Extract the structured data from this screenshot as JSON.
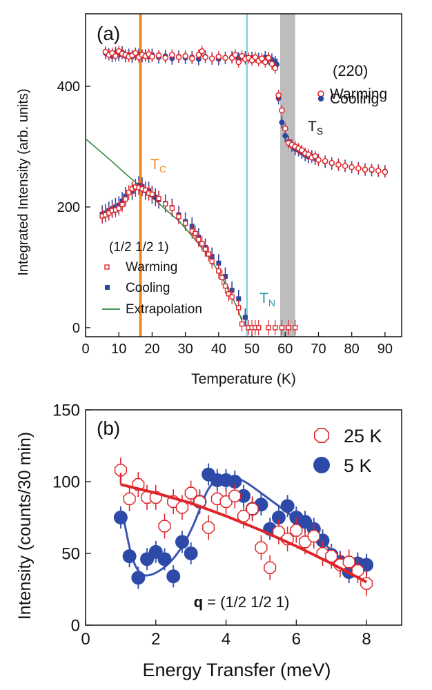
{
  "chart_data": [
    {
      "panel": "(a)",
      "type": "scatter",
      "xlabel": "Temperature (K)",
      "ylabel": "Integrated Intensity (arb. units)",
      "xlim": [
        0,
        95
      ],
      "ylim": [
        -15,
        520
      ],
      "xticks": [
        0,
        10,
        20,
        30,
        40,
        50,
        60,
        70,
        80,
        90
      ],
      "yticks": [
        0,
        200,
        400
      ],
      "legend_top": {
        "title": "(220)",
        "warming": "Warming",
        "cooling": "Cooling",
        "position": "top-right"
      },
      "legend_bottom": {
        "title": "(1/2 1/2 1)",
        "warming": "Warming",
        "cooling": "Cooling",
        "extrapolation": "Extrapolation",
        "position": "bottom-left"
      },
      "annotations": {
        "tc": {
          "main": "T",
          "sub": "C",
          "x": 16.5,
          "color": "#f08a24"
        },
        "tn": {
          "main": "T",
          "sub": "N",
          "x": 48.5,
          "color": "#7fd3e0"
        },
        "ts": {
          "main": "T",
          "sub": "S",
          "band": [
            58.5,
            63
          ],
          "color": "#bdbdbd"
        }
      },
      "colors": {
        "red": "#e0252a",
        "blue": "#2b47a0",
        "green": "#2a8a3e"
      },
      "series": [
        {
          "name": "(220) Warming",
          "x": [
            6,
            7,
            8,
            9,
            10,
            11,
            12,
            13,
            14,
            15,
            16,
            17,
            18,
            19,
            20,
            22,
            24,
            26,
            28,
            30,
            32,
            34,
            35,
            36,
            38,
            40,
            42,
            44,
            45,
            46,
            47,
            48,
            49,
            50,
            51,
            52,
            53,
            54,
            55,
            56,
            57,
            58,
            59,
            60,
            61,
            62,
            63,
            64,
            65,
            66,
            67,
            68,
            69,
            70,
            72,
            74,
            76,
            78,
            80,
            82,
            84,
            86,
            88,
            90
          ],
          "y": [
            457,
            452,
            455,
            450,
            458,
            454,
            452,
            449,
            451,
            455,
            448,
            452,
            450,
            453,
            449,
            451,
            447,
            452,
            448,
            450,
            446,
            452,
            458,
            448,
            446,
            449,
            447,
            447,
            452,
            440,
            450,
            445,
            447,
            443,
            448,
            442,
            446,
            440,
            447,
            437,
            430,
            385,
            360,
            330,
            306,
            303,
            300,
            297,
            294,
            289,
            287,
            282,
            284,
            278,
            276,
            273,
            270,
            268,
            266,
            264,
            262,
            262,
            260,
            258
          ]
        },
        {
          "name": "(220) Cooling",
          "x": [
            6,
            7,
            8,
            9,
            10,
            11,
            12,
            13,
            14,
            15,
            16,
            17,
            18,
            19,
            20,
            22,
            24,
            26,
            28,
            30,
            32,
            34,
            36,
            38,
            40,
            42,
            44,
            46,
            48,
            50,
            52,
            54,
            55,
            56,
            57,
            57.5,
            58,
            59,
            60,
            61,
            62,
            63,
            64,
            65,
            66,
            67,
            68,
            69,
            70,
            72,
            74,
            76,
            78,
            80,
            82,
            84,
            86,
            88,
            90
          ],
          "y": [
            455,
            453,
            450,
            455,
            452,
            456,
            450,
            452,
            449,
            453,
            452,
            450,
            451,
            449,
            452,
            448,
            450,
            446,
            449,
            447,
            448,
            445,
            449,
            446,
            445,
            447,
            448,
            446,
            448,
            447,
            445,
            448,
            446,
            444,
            440,
            436,
            380,
            340,
            318,
            308,
            302,
            296,
            294,
            290,
            286,
            283,
            284,
            280,
            278,
            275,
            272,
            270,
            268,
            266,
            264,
            262,
            261,
            260,
            259
          ]
        },
        {
          "name": "(1/2 1/2 1) Warming",
          "x": [
            5,
            6,
            7,
            8,
            9,
            10,
            11,
            12,
            13,
            14,
            15,
            16,
            17,
            18,
            19,
            20,
            22,
            24,
            26,
            28,
            30,
            32,
            33,
            34,
            35,
            36,
            37,
            38,
            40,
            41,
            42,
            43,
            44,
            46,
            47,
            49,
            50,
            51,
            52,
            55,
            57,
            59,
            61,
            63
          ],
          "y": [
            185,
            187,
            190,
            194,
            195,
            198,
            204,
            213,
            224,
            230,
            233,
            232,
            230,
            228,
            223,
            221,
            214,
            205,
            198,
            184,
            173,
            160,
            156,
            146,
            139,
            130,
            122,
            110,
            94,
            83,
            69,
            56,
            51,
            33,
            6,
            0,
            0,
            0,
            0,
            0,
            0,
            0,
            0,
            0
          ]
        },
        {
          "name": "(1/2 1/2 1) Cooling",
          "x": [
            5,
            6,
            7,
            8,
            9,
            10,
            11,
            12,
            14,
            15,
            16,
            17,
            18,
            19,
            20,
            21,
            22,
            24,
            26,
            28,
            30,
            32,
            34,
            36,
            38,
            40,
            42,
            44,
            46,
            48
          ],
          "y": [
            188,
            190,
            194,
            197,
            200,
            203,
            210,
            218,
            226,
            232,
            236,
            234,
            227,
            227,
            220,
            216,
            212,
            206,
            199,
            187,
            176,
            168,
            150,
            133,
            118,
            107,
            85,
            62,
            48,
            17
          ]
        },
        {
          "name": "Extrapolation",
          "x": [
            0,
            4,
            8,
            12,
            16,
            20,
            24,
            28,
            32,
            36,
            40,
            42,
            44,
            45,
            46,
            47
          ],
          "y": [
            313,
            294,
            275,
            255,
            236,
            216,
            196,
            177,
            152,
            125,
            93,
            72,
            51,
            40,
            27,
            11
          ]
        }
      ]
    },
    {
      "panel": "(b)",
      "type": "scatter",
      "xlabel": "Energy Transfer (meV)",
      "ylabel": "Intensity (counts/30 min)",
      "xlim": [
        0,
        9
      ],
      "ylim": [
        0,
        150
      ],
      "xticks": [
        0,
        2,
        4,
        6,
        8
      ],
      "yticks": [
        0,
        50,
        100,
        150
      ],
      "annotation": {
        "bold": "q",
        "rest": " = (1/2 1/2 1)"
      },
      "legend": {
        "red": "25 K",
        "blue": "5 K",
        "position": "top-right"
      },
      "series": [
        {
          "name": "25 K",
          "x": [
            1.0,
            1.25,
            1.5,
            1.75,
            2.0,
            2.25,
            2.5,
            2.75,
            3.0,
            3.25,
            3.5,
            3.75,
            4.0,
            4.25,
            4.5,
            4.75,
            5.0,
            5.25,
            5.5,
            5.75,
            6.0,
            6.25,
            6.5,
            6.75,
            7.0,
            7.25,
            7.5,
            7.75,
            8.0
          ],
          "y": [
            108,
            88,
            98,
            89,
            89,
            69,
            86,
            82,
            92,
            86,
            68,
            88,
            86,
            90,
            76,
            81,
            54,
            40,
            65,
            60,
            66,
            58,
            62,
            50,
            48,
            42,
            44,
            38,
            29
          ]
        },
        {
          "name": "5 K",
          "x": [
            1.0,
            1.25,
            1.5,
            1.75,
            2.0,
            2.25,
            2.5,
            2.75,
            3.0,
            3.25,
            3.5,
            3.75,
            4.0,
            4.25,
            4.5,
            4.75,
            5.0,
            5.25,
            5.5,
            5.75,
            6.0,
            6.25,
            6.5,
            6.75,
            7.0,
            7.25,
            7.5,
            7.75,
            8.0
          ],
          "y": [
            75,
            48,
            33,
            46,
            51,
            46,
            34,
            58,
            50,
            86,
            105,
            101,
            101,
            100,
            90,
            81,
            84,
            67,
            75,
            83,
            75,
            72,
            67,
            59,
            49,
            44,
            37,
            43,
            42
          ]
        },
        {
          "name": "25 K fit",
          "x": [
            1.0,
            2.0,
            3.0,
            4.0,
            5.0,
            6.0,
            7.0,
            8.0
          ],
          "y": [
            98,
            92,
            85,
            76,
            66,
            55,
            43,
            30
          ]
        },
        {
          "name": "5 K fit",
          "x": [
            1.1,
            1.3,
            1.5,
            1.7,
            2.0,
            2.4,
            2.8,
            3.1,
            3.3,
            3.5,
            3.8,
            4.1,
            4.5,
            5.0,
            5.5,
            6.0,
            6.5,
            7.0,
            7.5,
            7.8
          ],
          "y": [
            72,
            48,
            37,
            34,
            36,
            43,
            56,
            71,
            84,
            96,
            103,
            104,
            101,
            92,
            83,
            74,
            64,
            52,
            40,
            32
          ]
        }
      ]
    }
  ]
}
